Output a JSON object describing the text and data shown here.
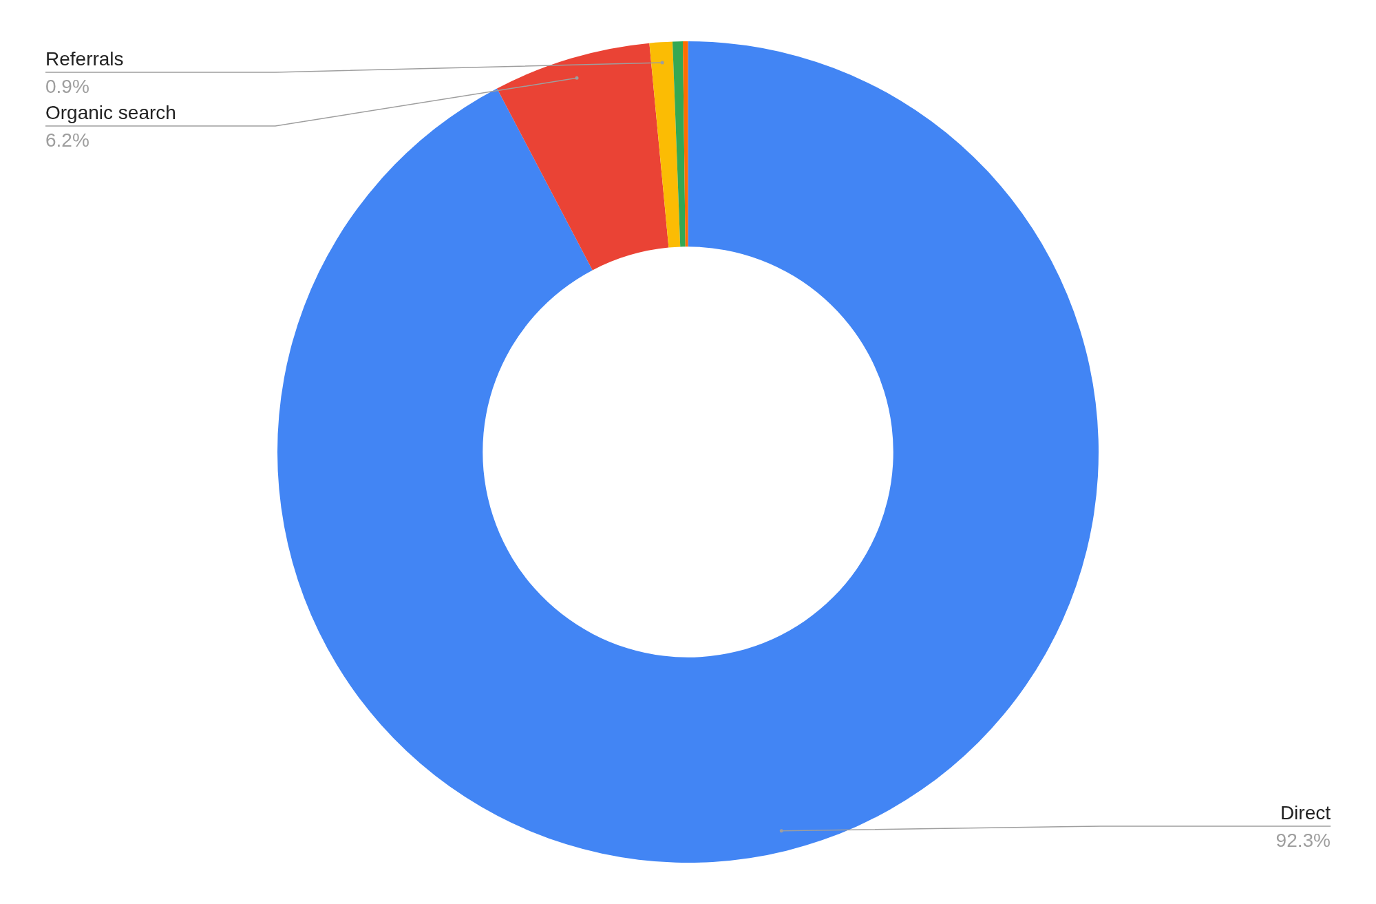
{
  "chart_data": {
    "type": "donut",
    "categories": [
      "Direct",
      "Organic search",
      "Referrals",
      null,
      null
    ],
    "values": [
      92.3,
      6.2,
      0.9,
      0.4,
      0.2
    ],
    "colors": [
      "#4285f4",
      "#ea4335",
      "#fbbc04",
      "#34a853",
      "#ff6d01"
    ],
    "value_labels": [
      "92.3%",
      "6.2%",
      "0.9%",
      null,
      null
    ],
    "legend": false
  }
}
